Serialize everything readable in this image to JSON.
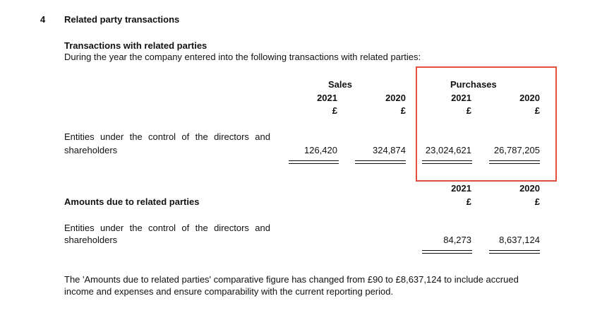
{
  "section": {
    "number": "4",
    "title": "Related party transactions"
  },
  "transactions": {
    "heading": "Transactions with related parties",
    "intro": "During the year the company entered into the following transactions with related parties:",
    "sales_label": "Sales",
    "purchases_label": "Purchases",
    "columns": [
      {
        "year": "2021",
        "currency": "£"
      },
      {
        "year": "2020",
        "currency": "£"
      },
      {
        "year": "2021",
        "currency": "£"
      },
      {
        "year": "2020",
        "currency": "£"
      }
    ],
    "row_label_line1": "Entities under the control of the directors and",
    "row_label_line2": "shareholders",
    "values": [
      "126,420",
      "324,874",
      "23,024,621",
      "26,787,205"
    ]
  },
  "amounts_due": {
    "heading": "Amounts due to related parties",
    "columns": [
      {
        "year": "2021",
        "currency": "£"
      },
      {
        "year": "2020",
        "currency": "£"
      }
    ],
    "row_label_line1": "Entities under the control of the directors and",
    "row_label_line2": "shareholders",
    "values": [
      "84,273",
      "8,637,124"
    ]
  },
  "note": {
    "line1": "The 'Amounts due to related parties' comparative figure has changed from £90 to £8,637,124 to include accrued",
    "line2": "income and expenses and ensure comparability with the current reporting period."
  },
  "colors": {
    "highlight": "#e0503a",
    "text": "#111111"
  }
}
